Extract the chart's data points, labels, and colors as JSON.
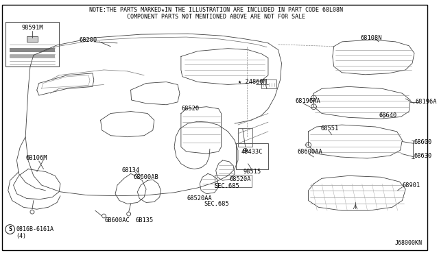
{
  "bg_color": "#ffffff",
  "border_color": "#000000",
  "note_line1": "NOTE:THE PARTS MARKED★IN THE ILLUSTRATION ARE INCLUDED IN PART CODE 68L08N",
  "note_line2": "COMPONENT PARTS NOT MENTIONED ABOVE ARE NOT FOR SALE",
  "line_color": "#404040",
  "text_color": "#000000",
  "note_fontsize": 6.0,
  "label_fontsize": 6.2,
  "bottom_left_code": "0816B-6161A",
  "bottom_left_num": "(4)",
  "bottom_right_code": "J68000KN"
}
